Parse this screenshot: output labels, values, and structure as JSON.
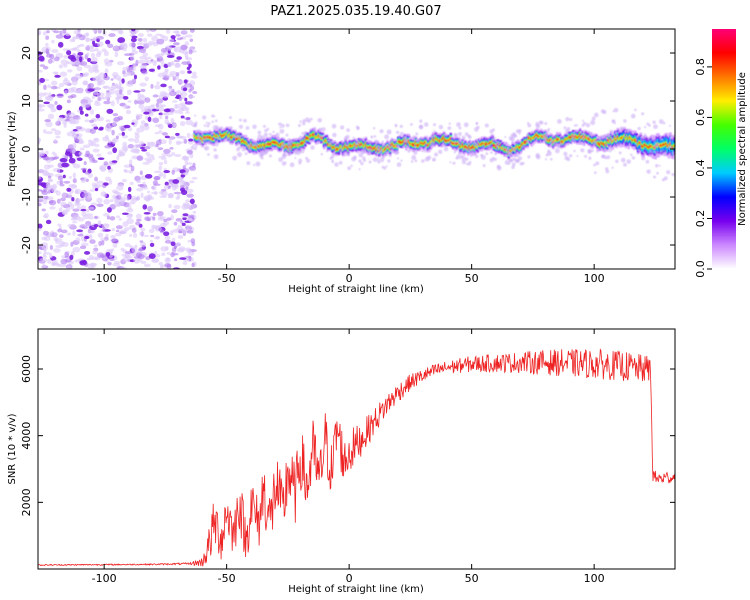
{
  "chart_data": [
    {
      "type": "heatmap",
      "title": "PAZ1.2025.035.19.40.G07",
      "xlabel": "Height of straight line (km)",
      "ylabel": "Frequency (Hz)",
      "xlim": [
        -127,
        133
      ],
      "ylim": [
        -25,
        25
      ],
      "xticks": [
        -100,
        -50,
        0,
        50,
        100
      ],
      "yticks": [
        -20,
        -10,
        0,
        10,
        20
      ],
      "grid": false,
      "colorbar": {
        "label": "Normalized spectral amplitude",
        "ticks": [
          "0.0",
          "0.2",
          "0.4",
          "0.6",
          "0.8"
        ],
        "range": [
          0,
          0.95
        ],
        "colormap": [
          "#ffffff",
          "#cc88ff",
          "#7700ee",
          "#0000ff",
          "#00ccff",
          "#00ff66",
          "#44ff00",
          "#ffee00",
          "#ff7700",
          "#ff0000",
          "#ff0077"
        ]
      },
      "noise_region": {
        "x": [
          -127,
          -63
        ],
        "y": [
          -25,
          25
        ],
        "level": 0.05
      },
      "signal_trace": {
        "x": [
          -63,
          -55,
          -45,
          -35,
          -25,
          -15,
          -5,
          5,
          15,
          25,
          35,
          45,
          55,
          65,
          75,
          85,
          95,
          105,
          115,
          125,
          133
        ],
        "freq": [
          2.5,
          2.8,
          2.0,
          0.5,
          0.8,
          2.2,
          0.8,
          0.2,
          0.5,
          1.0,
          2.0,
          0.8,
          1.0,
          -0.2,
          2.0,
          2.3,
          2.0,
          1.8,
          1.8,
          0.8,
          0.0
        ],
        "peak_amplitude": 0.95
      }
    },
    {
      "type": "line",
      "xlabel": "Height of straight line (km)",
      "ylabel": "SNR (10 * v/v)",
      "xlim": [
        -127,
        133
      ],
      "ylim": [
        0,
        7200
      ],
      "xticks": [
        -100,
        -50,
        0,
        50,
        100
      ],
      "yticks": [
        2000,
        4000,
        6000
      ],
      "grid": false,
      "series": [
        {
          "color": "#ee2222",
          "x": [
            -127,
            -100,
            -80,
            -65,
            -60,
            -57,
            -55,
            -52,
            -50,
            -47,
            -45,
            -42,
            -40,
            -37,
            -35,
            -32,
            -30,
            -27,
            -25,
            -22,
            -20,
            -17,
            -15,
            -12,
            -10,
            -7,
            -5,
            -2,
            0,
            5,
            10,
            15,
            20,
            25,
            30,
            35,
            40,
            50,
            60,
            70,
            80,
            90,
            100,
            110,
            115,
            120,
            123,
            124,
            126,
            130,
            133
          ],
          "y": [
            120,
            130,
            140,
            160,
            200,
            750,
            1400,
            900,
            1800,
            1000,
            2100,
            800,
            2000,
            1300,
            2400,
            1400,
            2600,
            1600,
            3000,
            2200,
            3400,
            2400,
            3600,
            2600,
            3900,
            2900,
            4200,
            3200,
            3500,
            3900,
            4400,
            4900,
            5300,
            5600,
            5800,
            5950,
            6050,
            6150,
            6180,
            6200,
            6200,
            6180,
            6150,
            6100,
            6050,
            6000,
            6000,
            2800,
            2700,
            2750,
            2750
          ],
          "noise_amplitude": [
            20,
            20,
            20,
            30,
            150,
            600,
            800,
            700,
            800,
            700,
            900,
            700,
            900,
            800,
            1000,
            900,
            1100,
            900,
            1100,
            900,
            1000,
            900,
            1000,
            900,
            1000,
            800,
            900,
            700,
            700,
            500,
            400,
            350,
            300,
            250,
            220,
            200,
            200,
            250,
            280,
            320,
            380,
            420,
            450,
            450,
            450,
            420,
            420,
            200,
            200,
            200,
            200
          ]
        }
      ]
    }
  ]
}
